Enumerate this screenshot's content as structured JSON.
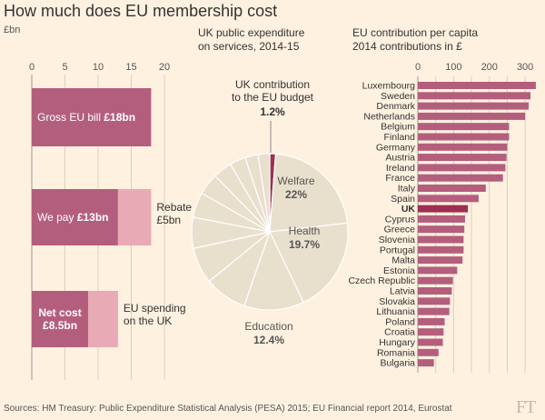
{
  "title": "How much does EU membership cost",
  "source": "Sources: HM Treasury: Public Expenditure Statistical Analysis (PESA) 2015; EU Financial report 2014, Eurostat",
  "logo": "FT",
  "colors": {
    "background": "#fff1e0",
    "bar_dark": "#b45e7d",
    "bar_light": "#e8aab5",
    "uk_bar": "#9e2f50",
    "pie_fill": "#e9dfcd",
    "grid": "#d9cfc1",
    "axis": "#999"
  },
  "chart_data": [
    {
      "type": "bar",
      "orientation": "horizontal-stacked",
      "unit_label": "£bn",
      "xlim": [
        0,
        20
      ],
      "xticks": [
        0,
        5,
        10,
        15,
        20
      ],
      "bars": [
        {
          "name": "gross",
          "label_prefix": "Gross EU bill ",
          "label_bold": "£18bn",
          "dark": 18,
          "light": 0,
          "annotation": ""
        },
        {
          "name": "we-pay",
          "label_prefix": "We pay ",
          "label_bold": "£13bn",
          "dark": 13,
          "light": 5,
          "annotation": "Rebate\n£5bn"
        },
        {
          "name": "net-cost",
          "label_prefix": "",
          "label_bold": "Net cost\n£8.5bn",
          "dark": 8.5,
          "light": 4.5,
          "annotation": "EU spending\non the UK"
        }
      ]
    },
    {
      "type": "pie",
      "title": "UK public expenditure\non services, 2014-15",
      "highlight": {
        "label": "UK contribution\nto the EU budget",
        "value": 1.2,
        "value_label": "1.2%"
      },
      "slices": [
        {
          "name": "UK contribution to the EU budget",
          "value": 1.2,
          "label": "",
          "highlight": true
        },
        {
          "name": "Welfare",
          "value": 22,
          "label": "Welfare\n22%"
        },
        {
          "name": "Health",
          "value": 19.7,
          "label": "Health\n19.7%"
        },
        {
          "name": "Education",
          "value": 12.4,
          "label": "Education\n12.4%"
        },
        {
          "name": "other-1",
          "value": 8.8,
          "label": ""
        },
        {
          "name": "other-2",
          "value": 7.5,
          "label": ""
        },
        {
          "name": "other-3",
          "value": 6.4,
          "label": ""
        },
        {
          "name": "other-4",
          "value": 5.2,
          "label": ""
        },
        {
          "name": "other-5",
          "value": 4.5,
          "label": ""
        },
        {
          "name": "other-6",
          "value": 3.9,
          "label": ""
        },
        {
          "name": "other-7",
          "value": 3.3,
          "label": ""
        },
        {
          "name": "other-8",
          "value": 2.7,
          "label": ""
        },
        {
          "name": "other-9",
          "value": 2.4,
          "label": ""
        }
      ]
    },
    {
      "type": "bar",
      "orientation": "horizontal",
      "title": "EU contribution per capita\n2014 contributions in £",
      "xlim": [
        0,
        320
      ],
      "xticks": [
        0,
        100,
        200,
        300
      ],
      "tick_labels": [
        "0",
        "100",
        "200",
        "300"
      ],
      "highlight": "UK",
      "categories": [
        "Luxembourg",
        "Sweden",
        "Denmark",
        "Netherlands",
        "Belgium",
        "Finland",
        "Germany",
        "Austria",
        "Ireland",
        "France",
        "Italy",
        "Spain",
        "UK",
        "Cyprus",
        "Greece",
        "Slovenia",
        "Portugal",
        "Malta",
        "Estonia",
        "Czech Republic",
        "Latvia",
        "Slovakia",
        "Lithuania",
        "Poland",
        "Croatia",
        "Hungary",
        "Romania",
        "Bulgaria"
      ],
      "values": [
        330,
        315,
        310,
        300,
        255,
        255,
        250,
        248,
        245,
        238,
        190,
        170,
        140,
        132,
        130,
        128,
        128,
        125,
        110,
        98,
        95,
        90,
        88,
        75,
        72,
        70,
        58,
        45
      ]
    }
  ]
}
